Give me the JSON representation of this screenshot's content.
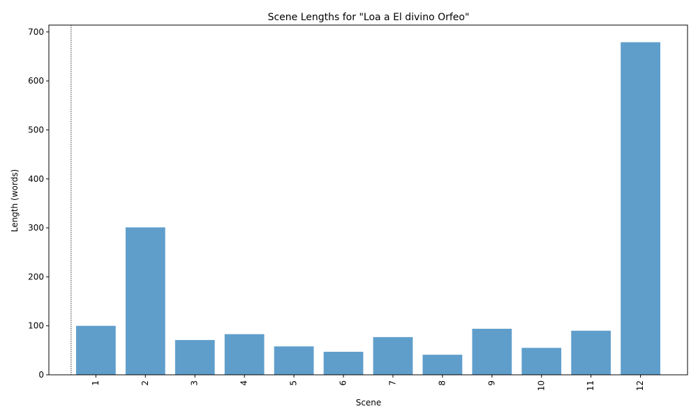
{
  "chart_data": {
    "type": "bar",
    "title": "Scene Lengths for \"Loa a El divino Orfeo\"",
    "xlabel": "Scene",
    "ylabel": "Length (words)",
    "categories": [
      "1",
      "2",
      "3",
      "4",
      "5",
      "6",
      "7",
      "8",
      "9",
      "10",
      "11",
      "12"
    ],
    "values": [
      100,
      301,
      71,
      83,
      58,
      47,
      77,
      41,
      94,
      55,
      90,
      679
    ],
    "ylim": [
      0,
      714
    ],
    "yticks": [
      0,
      100,
      200,
      300,
      400,
      500,
      600,
      700
    ],
    "ytick_labels": [
      "0",
      "100",
      "200",
      "300",
      "400",
      "500",
      "600",
      "700"
    ],
    "grid": false,
    "bar_color": "#5f9ecb",
    "reference_line": {
      "style": "dotted",
      "color": "#000000"
    }
  }
}
